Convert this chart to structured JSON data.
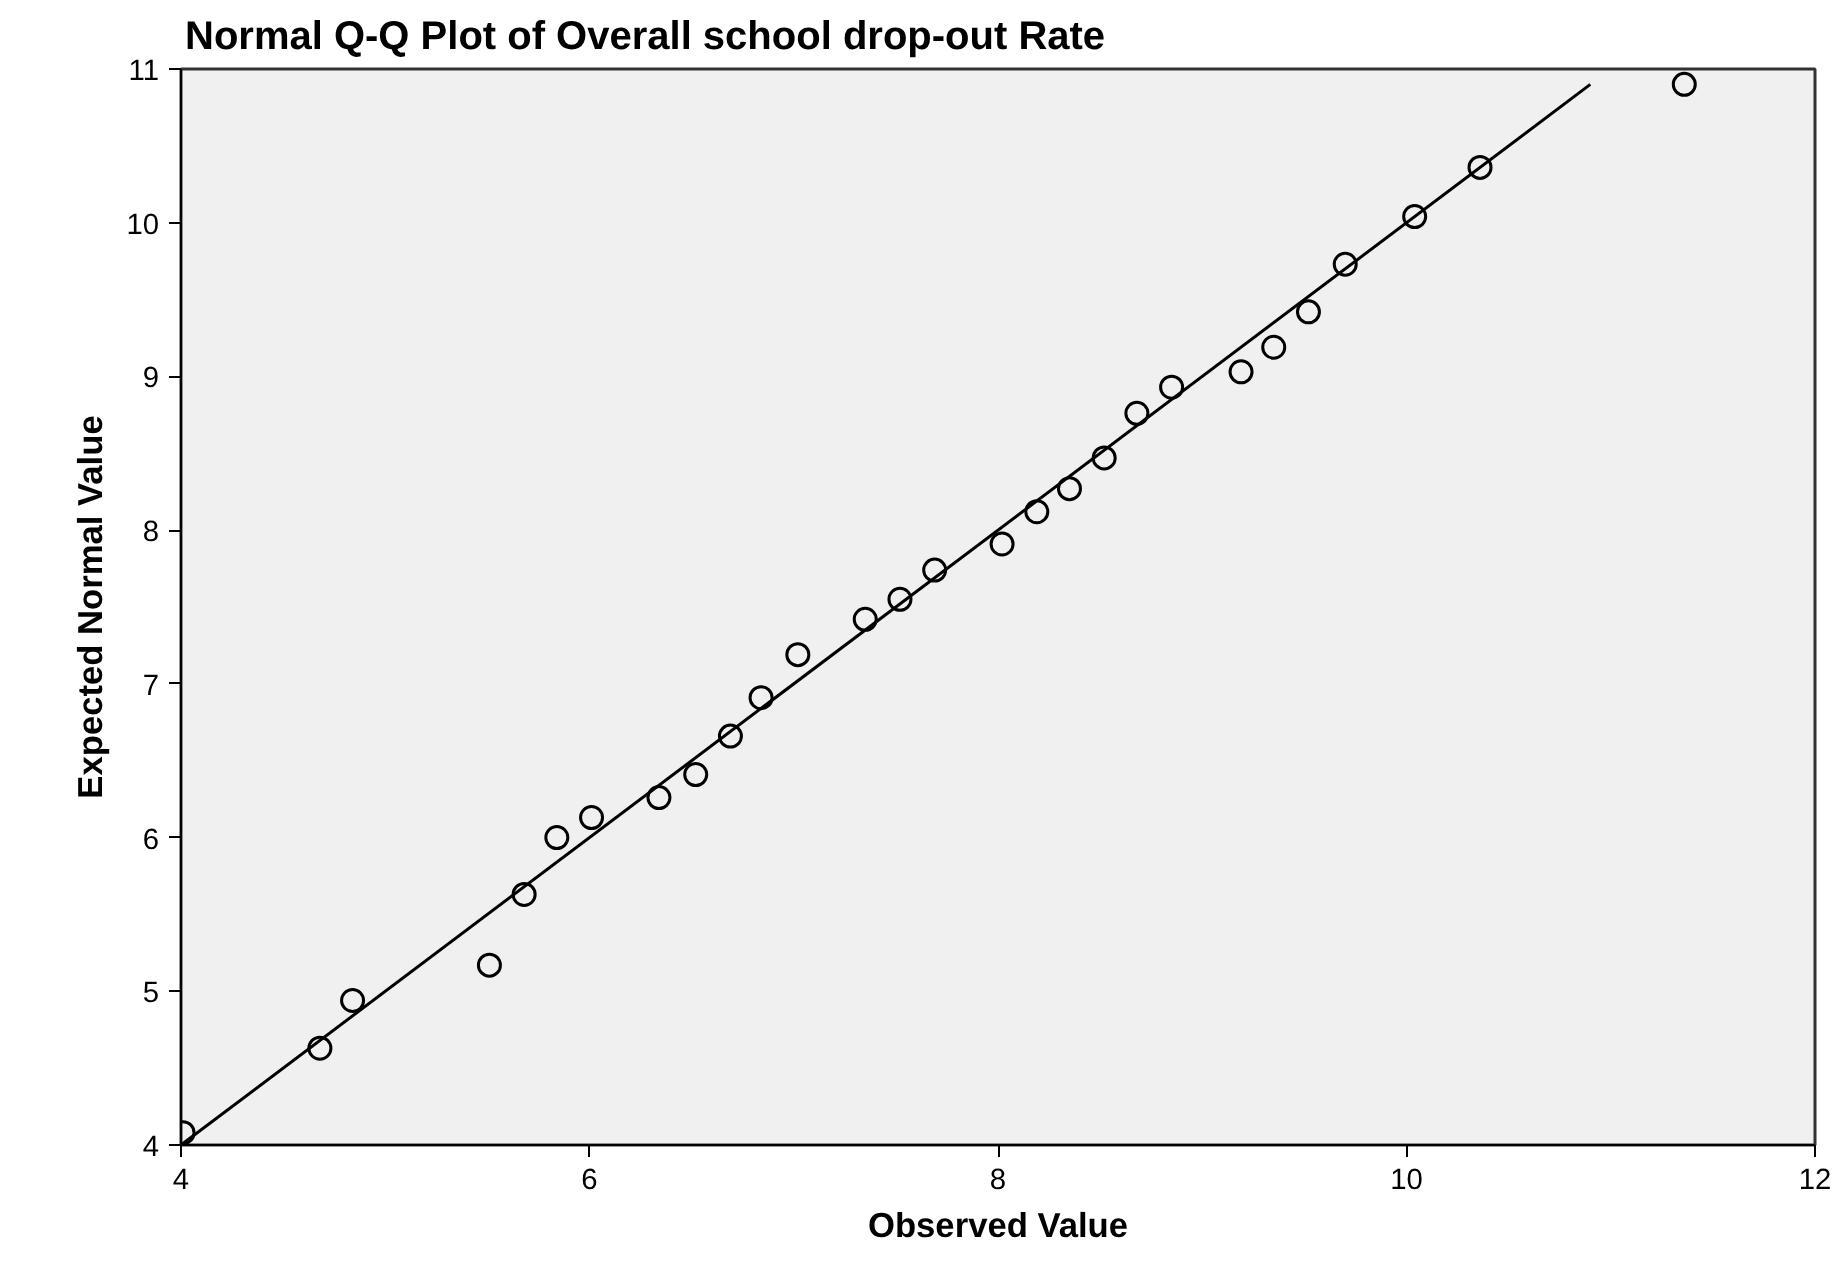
{
  "chart_data": {
    "type": "scatter",
    "title": "Normal Q-Q Plot of Overall school drop-out Rate",
    "xlabel": "Observed Value",
    "ylabel": "Expected Normal Value",
    "xlim": [
      4,
      12
    ],
    "ylim": [
      4,
      11
    ],
    "xticks": [
      4,
      6,
      8,
      10,
      12
    ],
    "yticks": [
      4,
      5,
      6,
      7,
      8,
      9,
      10,
      11
    ],
    "grid": false,
    "marker": "circle",
    "x": [
      4.01,
      4.68,
      4.84,
      5.51,
      5.68,
      5.84,
      6.01,
      6.34,
      6.52,
      6.69,
      6.84,
      7.02,
      7.35,
      7.52,
      7.69,
      8.02,
      8.19,
      8.35,
      8.52,
      8.68,
      8.85,
      9.19,
      9.35,
      9.52,
      9.7,
      10.04,
      10.36,
      11.36
    ],
    "series": [
      {
        "color": "#000000",
        "values": [
          4.08,
          4.63,
          4.94,
          5.17,
          5.63,
          6.0,
          6.13,
          6.26,
          6.41,
          6.66,
          6.91,
          7.19,
          7.42,
          7.55,
          7.74,
          7.91,
          8.12,
          8.27,
          8.47,
          8.76,
          8.93,
          9.03,
          9.19,
          9.42,
          9.73,
          10.04,
          10.36,
          10.9
        ]
      },
      {
        "type": "line",
        "color": "#000000",
        "marker": "none",
        "line_style": "solid",
        "x": [
          4,
          10.9
        ],
        "values": [
          4,
          10.9
        ]
      }
    ]
  }
}
